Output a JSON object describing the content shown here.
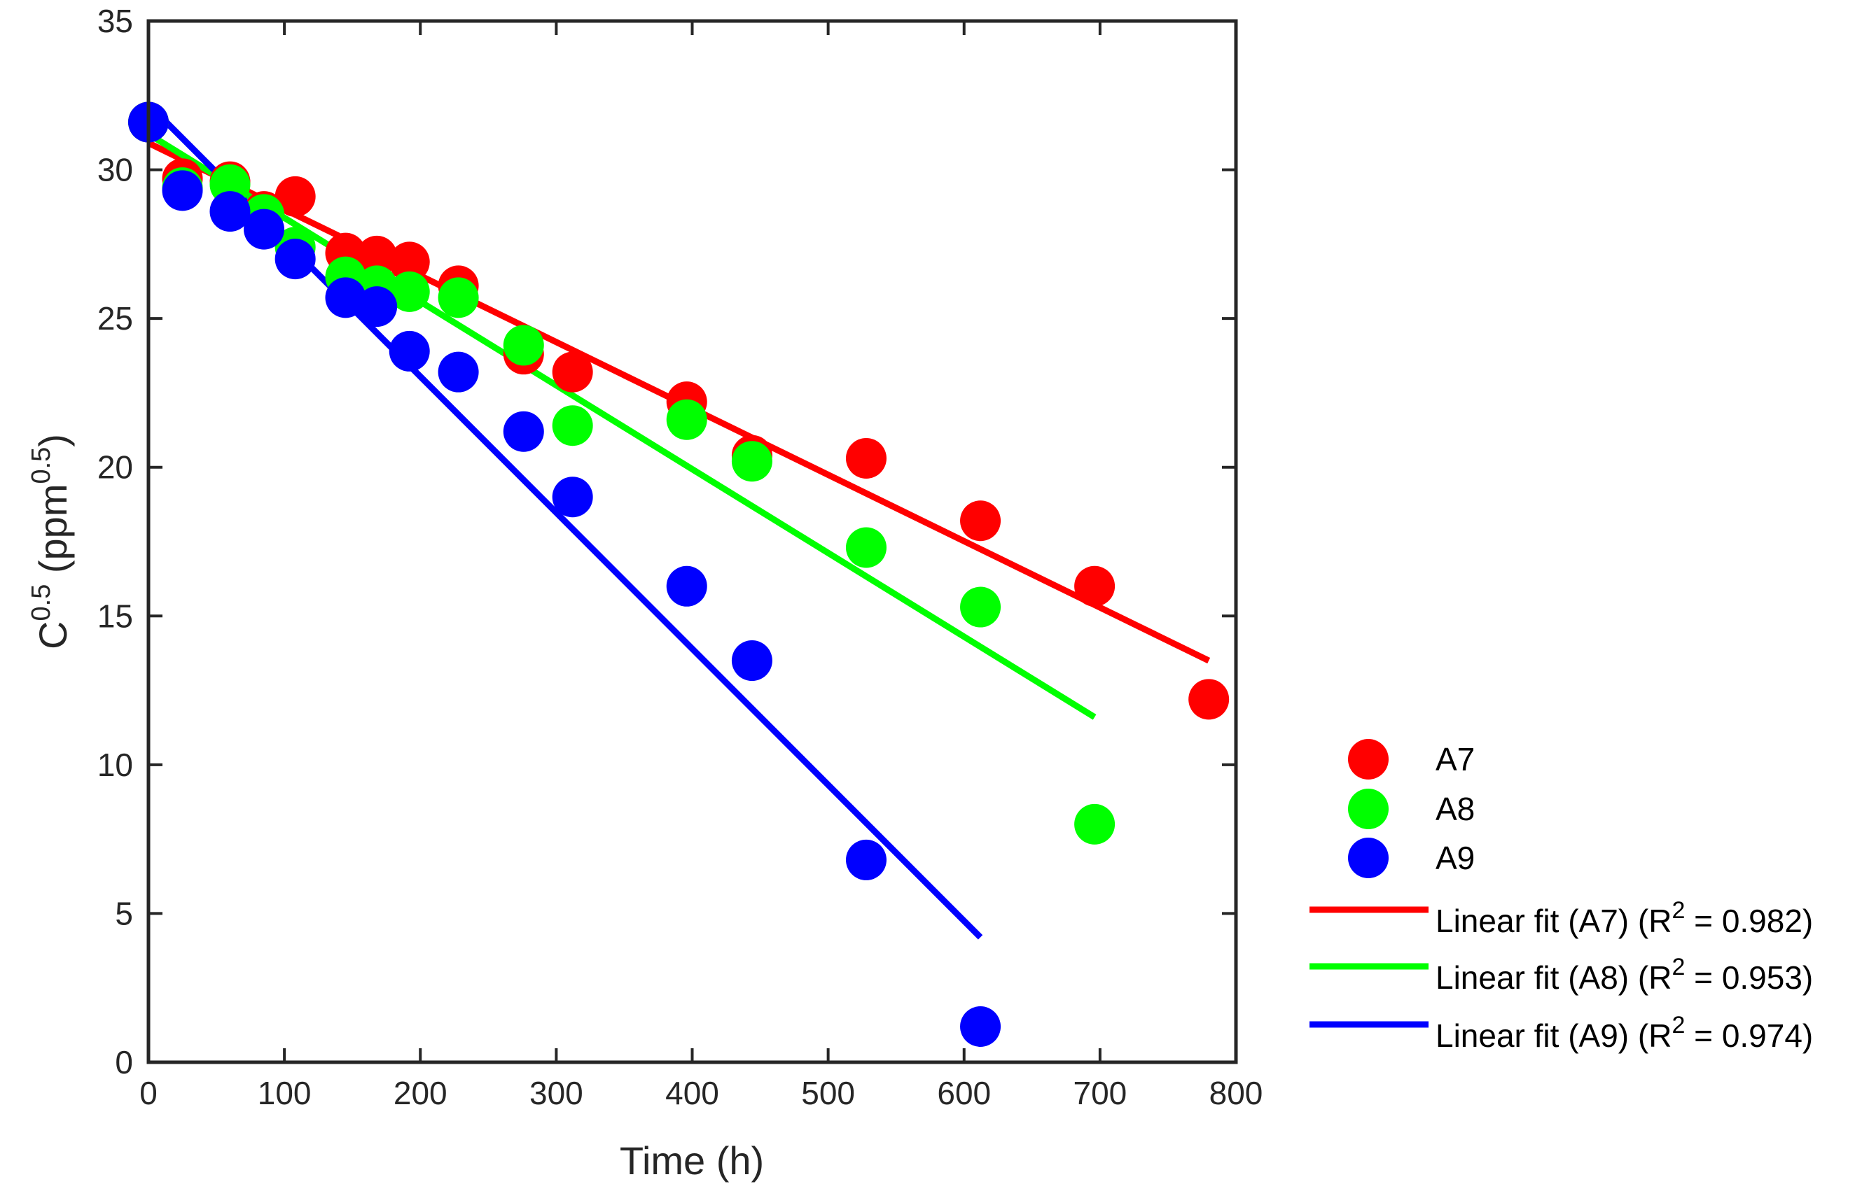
{
  "chart_data": {
    "type": "scatter",
    "title": "",
    "xlabel": "Time (h)",
    "ylabel": {
      "base": "C",
      "base_sup": "0.5",
      "unit_open": " (ppm",
      "unit_sup": "0.5",
      "unit_close": ")"
    },
    "xlim": [
      0,
      800
    ],
    "ylim": [
      0,
      35
    ],
    "xticks": [
      0,
      100,
      200,
      300,
      400,
      500,
      600,
      700,
      800
    ],
    "yticks": [
      0,
      5,
      10,
      15,
      20,
      25,
      30,
      35
    ],
    "legend_position": "right",
    "series": [
      {
        "name": "A7",
        "color": "#ff0000",
        "x": [
          0,
          25,
          60,
          85,
          108,
          145,
          168,
          192,
          228,
          276,
          312,
          396,
          444,
          528,
          612,
          696,
          780
        ],
        "y": [
          31.6,
          29.7,
          29.6,
          28.6,
          29.1,
          27.2,
          27.1,
          26.9,
          26.1,
          23.8,
          23.2,
          22.2,
          20.4,
          20.3,
          18.2,
          16.0,
          12.2
        ]
      },
      {
        "name": "A8",
        "color": "#00ff00",
        "x": [
          0,
          25,
          60,
          85,
          108,
          145,
          168,
          192,
          228,
          276,
          312,
          396,
          444,
          528,
          612,
          696
        ],
        "y": [
          31.6,
          29.4,
          29.5,
          28.5,
          27.4,
          26.4,
          26.1,
          25.9,
          25.7,
          24.1,
          21.4,
          21.6,
          20.2,
          17.3,
          15.3,
          8.0
        ]
      },
      {
        "name": "A9",
        "color": "#0000ff",
        "x": [
          0,
          25,
          60,
          85,
          108,
          145,
          168,
          192,
          228,
          276,
          312,
          396,
          444,
          528,
          612
        ],
        "y": [
          31.6,
          29.3,
          28.6,
          28.0,
          27.0,
          25.7,
          25.4,
          23.9,
          23.2,
          21.2,
          19.0,
          16.0,
          13.5,
          6.8,
          1.2
        ]
      }
    ],
    "fits": [
      {
        "name": "Linear fit (A7)",
        "r2_label": "R",
        "r2_sup": "2",
        "r2_value": " = 0.982)",
        "color": "#ff0000",
        "x": [
          0,
          780
        ],
        "y": [
          30.9,
          13.5
        ]
      },
      {
        "name": "Linear fit (A8)",
        "r2_label": "R",
        "r2_sup": "2",
        "r2_value": " = 0.953)",
        "color": "#00ff00",
        "x": [
          0,
          696
        ],
        "y": [
          31.2,
          11.6
        ]
      },
      {
        "name": "Linear fit (A9)",
        "r2_label": "R",
        "r2_sup": "2",
        "r2_value": " = 0.974)",
        "color": "#0000ff",
        "x": [
          0,
          612
        ],
        "y": [
          32.2,
          4.2
        ]
      }
    ]
  }
}
